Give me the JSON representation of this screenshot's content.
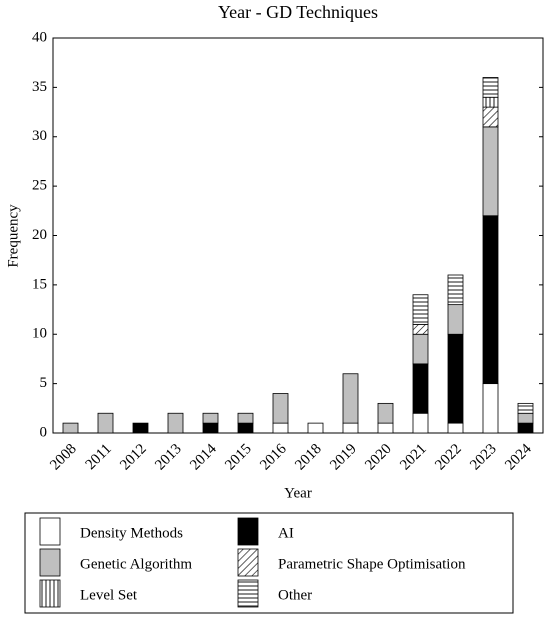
{
  "chart_data": {
    "type": "stacked-bar",
    "title": "Year - GD Techniques",
    "x_label": "Year",
    "y_label": "Frequency",
    "categories": [
      "2008",
      "2011",
      "2012",
      "2013",
      "2014",
      "2015",
      "2016",
      "2018",
      "2019",
      "2020",
      "2021",
      "2022",
      "2023",
      "2024"
    ],
    "series": [
      {
        "name": "Density Methods",
        "color": "#ffffff",
        "pattern": "none",
        "values": [
          0,
          0,
          0,
          0,
          0,
          0,
          1,
          1,
          1,
          1,
          2,
          1,
          5,
          0
        ]
      },
      {
        "name": "AI",
        "color": "#000000",
        "pattern": "none",
        "values": [
          0,
          0,
          1,
          0,
          1,
          1,
          0,
          0,
          0,
          0,
          5,
          9,
          17,
          1
        ]
      },
      {
        "name": "Genetic Algorithm",
        "color": "#bfbfbf",
        "pattern": "none",
        "values": [
          1,
          2,
          0,
          2,
          1,
          1,
          3,
          0,
          5,
          2,
          3,
          3,
          9,
          1
        ]
      },
      {
        "name": "Parametric Shape Optimisation",
        "color": "#ffffff",
        "pattern": "diagonal",
        "values": [
          0,
          0,
          0,
          0,
          0,
          0,
          0,
          0,
          0,
          0,
          1,
          0,
          2,
          0
        ]
      },
      {
        "name": "Level Set",
        "color": "#ffffff",
        "pattern": "vertical",
        "values": [
          0,
          0,
          0,
          0,
          0,
          0,
          0,
          0,
          0,
          0,
          0,
          0,
          1,
          0
        ]
      },
      {
        "name": "Other",
        "color": "#ffffff",
        "pattern": "horizontal",
        "values": [
          0,
          0,
          0,
          0,
          0,
          0,
          0,
          0,
          0,
          0,
          3,
          3,
          2,
          1
        ]
      }
    ],
    "ylim": [
      0,
      40
    ],
    "yticks": [
      0,
      5,
      10,
      15,
      20,
      25,
      30,
      35,
      40
    ],
    "grid": false,
    "legend": "bottom"
  }
}
